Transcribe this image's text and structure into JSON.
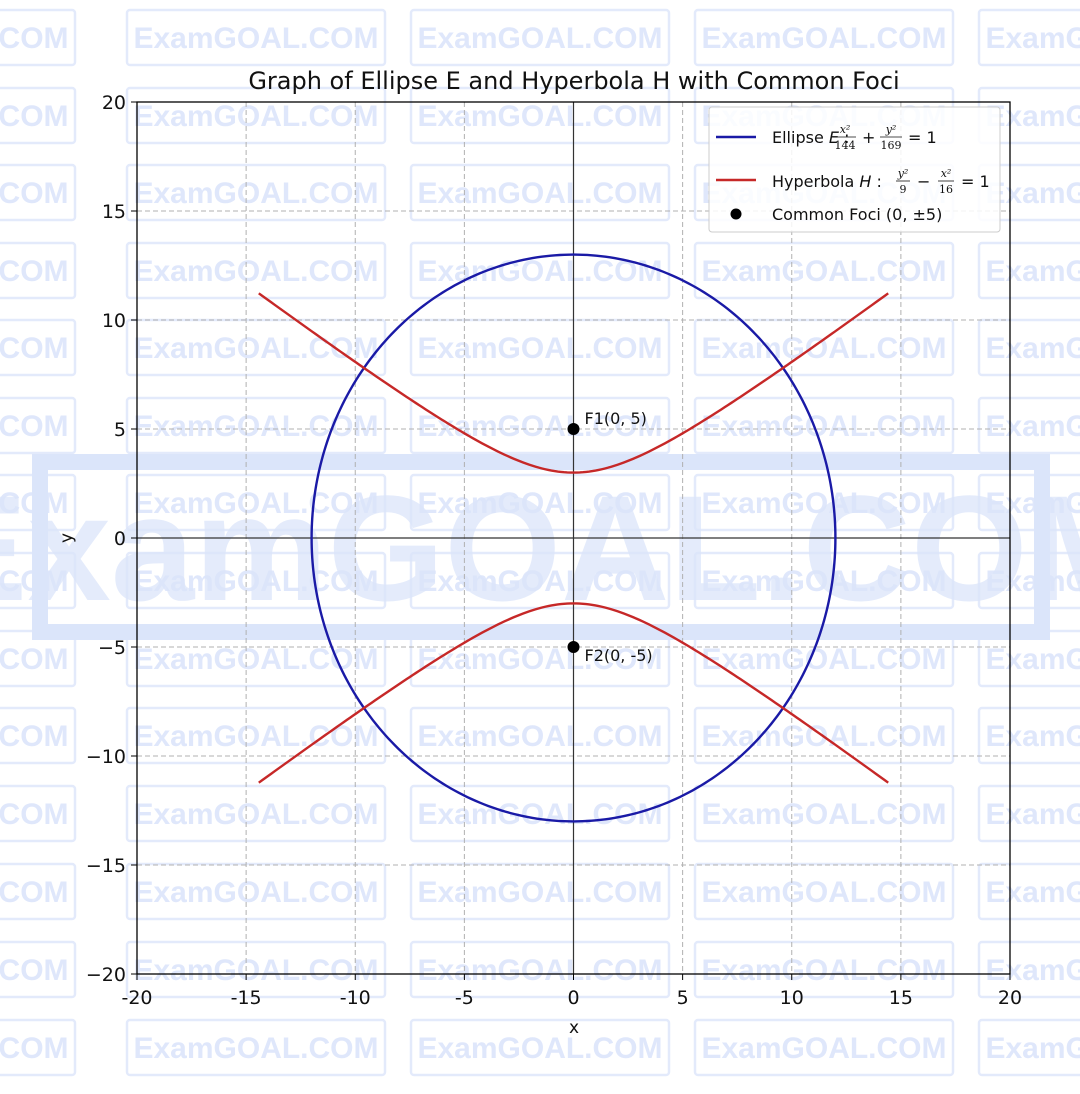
{
  "chart_data": {
    "type": "line",
    "title": "Graph of Ellipse E and Hyperbola H with Common Foci",
    "xlabel": "x",
    "ylabel": "y",
    "xlim": [
      -20,
      20
    ],
    "ylim": [
      -20,
      20
    ],
    "xticks": [
      -20,
      -15,
      -10,
      -5,
      0,
      5,
      10,
      15,
      20
    ],
    "yticks": [
      -20,
      -15,
      -10,
      -5,
      0,
      5,
      10,
      15,
      20
    ],
    "xtick_labels": [
      "-20",
      "-15",
      "-10",
      "-5",
      "0",
      "5",
      "10",
      "15",
      "20"
    ],
    "ytick_labels": [
      "−20",
      "−15",
      "−10",
      "−5",
      "0",
      "5",
      "10",
      "15",
      "20"
    ],
    "grid": true,
    "legend_position": "upper right",
    "series": [
      {
        "name": "Ellipse E: x²/144 + y²/169 = 1",
        "kind": "ellipse",
        "a": 12,
        "b": 13,
        "color": "#1a1aa6"
      },
      {
        "name": "Hyperbola H: y²/9 − x²/16 = 1",
        "kind": "hyperbola",
        "a": 3,
        "b": 4,
        "x_range": [
          -14.42,
          14.42
        ],
        "color": "#c62828"
      },
      {
        "name": "Common Foci (0, ±5)",
        "kind": "scatter",
        "points": [
          [
            0,
            5
          ],
          [
            0,
            -5
          ]
        ],
        "color": "#000000"
      }
    ],
    "annotations": [
      {
        "text": "F1(0, 5)",
        "x": 0,
        "y": 5
      },
      {
        "text": "F2(0, -5)",
        "x": 0,
        "y": -5
      }
    ],
    "intersections_approx": [
      [
        -9.6,
        7.8
      ],
      [
        9.6,
        7.8
      ],
      [
        -9.6,
        -7.8
      ],
      [
        9.6,
        -7.8
      ]
    ]
  },
  "legend": {
    "ellipse_prefix": "Ellipse ",
    "ellipse_var": "E",
    "ellipse_frac1_num": "x²",
    "ellipse_frac1_den": "144",
    "ellipse_op": "+",
    "ellipse_frac2_num": "y²",
    "ellipse_frac2_den": "169",
    "ellipse_eq": "= 1",
    "hyperbola_prefix": "Hyperbola ",
    "hyperbola_var": "H",
    "hyperbola_frac1_num": "y²",
    "hyperbola_frac1_den": "9",
    "hyperbola_op": "−",
    "hyperbola_frac2_num": "x²",
    "hyperbola_frac2_den": "16",
    "hyperbola_eq": "= 1",
    "foci_label": "Common Foci (0, ±5)"
  },
  "watermark": {
    "small_text": "ExamGOAL.COM",
    "big_text": "ExamGOAL.COM"
  }
}
